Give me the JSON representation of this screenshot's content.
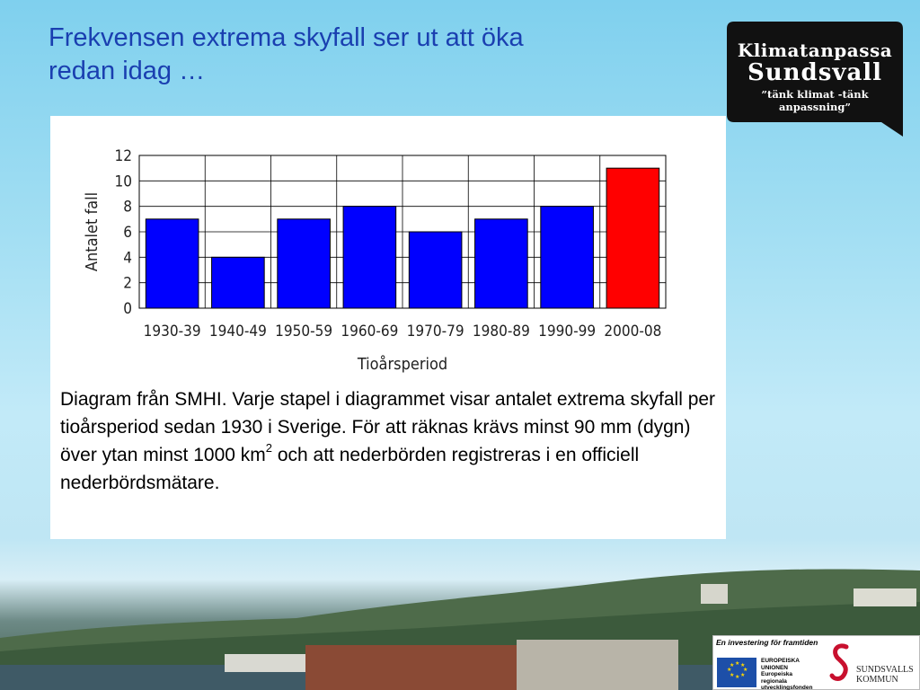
{
  "slide": {
    "title_lines": [
      "Frekvensen extrema skyfall ser ut att öka",
      "redan idag …"
    ]
  },
  "logo": {
    "line1": "Klimatanpassa",
    "line2": "Sundsvall",
    "line3": "”tänk klimat -tänk anpassning”"
  },
  "chart_data": {
    "type": "bar",
    "title": "",
    "xlabel": "Tioårsperiod",
    "ylabel": "Antalet fall",
    "categories": [
      "1930-39",
      "1940-49",
      "1950-59",
      "1960-69",
      "1970-79",
      "1980-89",
      "1990-99",
      "2000-08"
    ],
    "values": [
      7,
      4,
      7,
      8,
      6,
      7,
      8,
      11
    ],
    "bar_colors": [
      "#0000ff",
      "#0000ff",
      "#0000ff",
      "#0000ff",
      "#0000ff",
      "#0000ff",
      "#0000ff",
      "#ff0000"
    ],
    "ylim": [
      0,
      12
    ],
    "yticks": [
      0,
      2,
      4,
      6,
      8,
      10,
      12
    ],
    "grid": true,
    "legend": "none"
  },
  "caption": {
    "before_sup": "Diagram från SMHI. Varje stapel i diagrammet visar antalet extrema skyfall per tioårsperiod sedan 1930 i Sverige. För att räknas krävs minst 90 mm (dygn)  över ytan minst 1000 km",
    "sup": "2",
    "after_sup": " och att nederbörden registreras i en officiell nederbördsmätare."
  },
  "footer": {
    "tagline": "En investering för framtiden",
    "eu_lines": [
      "EUROPEISKA",
      "UNIONEN",
      "Europeiska",
      "regionala",
      "utvecklingsfonden"
    ],
    "kommun_lines": [
      "SUNDSVALLS",
      "KOMMUN"
    ]
  },
  "colors": {
    "title": "#1a3fb0",
    "bar": "#0000ff",
    "highlight_bar": "#ff0000",
    "logo_bg": "#111111"
  }
}
